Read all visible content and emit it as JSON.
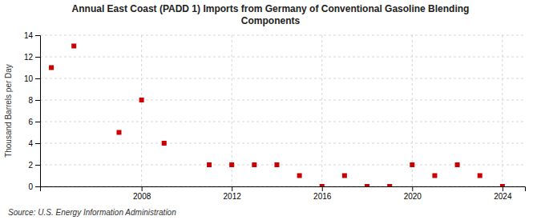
{
  "chart_data": {
    "type": "scatter",
    "title": "Annual East Coast (PADD 1) Imports from Germany of Conventional Gasoline Blending\nComponents",
    "ylabel": "Thousand Barrels per Day",
    "annotations": [
      "Source: U.S. Energy Information Administration"
    ],
    "x": [
      2004,
      2005,
      2007,
      2008,
      2009,
      2011,
      2012,
      2013,
      2014,
      2015,
      2016,
      2017,
      2018,
      2019,
      2020,
      2021,
      2022,
      2023,
      2024
    ],
    "values": [
      11,
      13,
      5,
      8,
      4,
      2,
      2,
      2,
      2,
      1,
      0,
      1,
      0,
      0,
      2,
      1,
      2,
      1,
      0
    ],
    "color": "#cc0000",
    "marker": "square",
    "xlim": [
      2003.5,
      2025.0
    ],
    "ylim": [
      0,
      14
    ],
    "xticks": [
      2008,
      2012,
      2016,
      2020,
      2024
    ],
    "yticks": [
      0,
      2,
      4,
      6,
      8,
      10,
      12,
      14
    ],
    "grid": true
  }
}
